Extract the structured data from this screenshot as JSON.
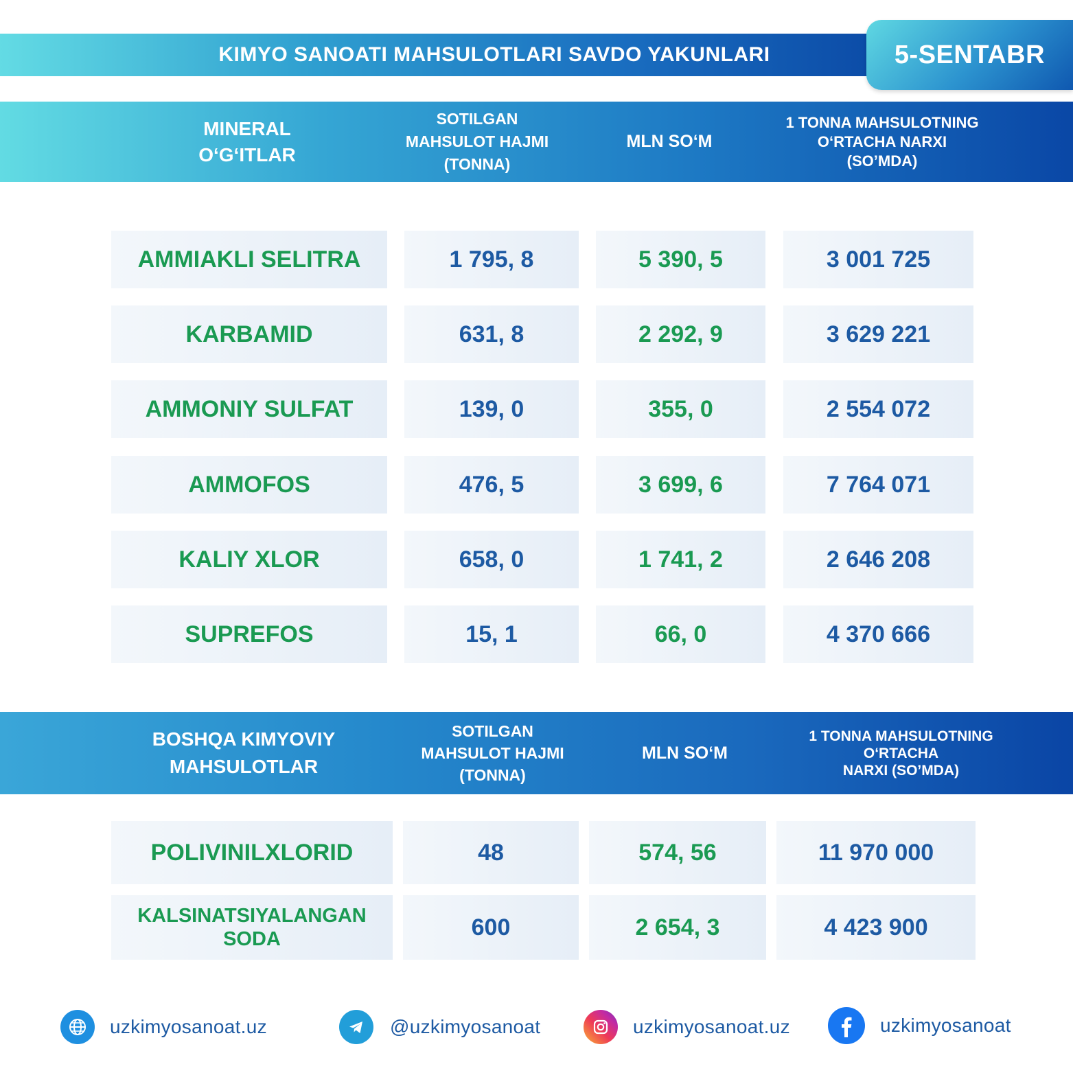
{
  "header": {
    "title": "KIMYO SANOATI MAHSULOTLARI SAVDO YAKUNLARI",
    "date": "5-SENTABR"
  },
  "table1": {
    "columns": [
      "MINERAL\nO‘G‘ITLAR",
      "SOTILGAN\nMAHSULOT HAJMI\n(TONNA)",
      "MLN SO‘M",
      "1 TONNA MAHSULOTNING\nO‘RTACHA NARXI\n(SO’MDA)"
    ],
    "rows": [
      {
        "name": "AMMIAKLI SELITRA",
        "volume": "1 795, 8",
        "mln": "5 390, 5",
        "price": "3 001 725"
      },
      {
        "name": "KARBAMID",
        "volume": "631, 8",
        "mln": "2 292, 9",
        "price": "3 629 221"
      },
      {
        "name": "AMMONIY SULFAT",
        "volume": "139, 0",
        "mln": "355, 0",
        "price": "2 554 072"
      },
      {
        "name": "AMMOFOS",
        "volume": "476, 5",
        "mln": "3 699, 6",
        "price": "7 764 071"
      },
      {
        "name": "KALIY XLOR",
        "volume": "658, 0",
        "mln": "1 741, 2",
        "price": "2 646 208"
      },
      {
        "name": "SUPREFOS",
        "volume": "15, 1",
        "mln": "66, 0",
        "price": "4 370 666"
      }
    ]
  },
  "table2": {
    "columns": [
      "BOSHQA KIMYOVIY\nMAHSULOTLAR",
      "SOTILGAN\nMAHSULOT HAJMI\n(TONNA)",
      "MLN SO‘M",
      "1 TONNA MAHSULOTNING\nO‘RTACHA\nNARXI (SO’MDA)"
    ],
    "rows": [
      {
        "name": "POLIVINILXLORID",
        "volume": "48",
        "mln": "574, 56",
        "price": "11 970 000"
      },
      {
        "name": "KALSINATSIYALANGAN\nSODA",
        "volume": "600",
        "mln": "2 654, 3",
        "price": "4 423 900"
      }
    ]
  },
  "footer": {
    "website": "uzkimyosanoat.uz",
    "telegram": "@uzkimyosanoat",
    "instagram": "uzkimyosanoat.uz",
    "facebook": "uzkimyosanoat"
  },
  "colors": {
    "green_text": "#1a9a52",
    "blue_text": "#1d5aa3",
    "header_gradient_start": "#62dbe3",
    "header_gradient_end": "#0a47a6"
  }
}
